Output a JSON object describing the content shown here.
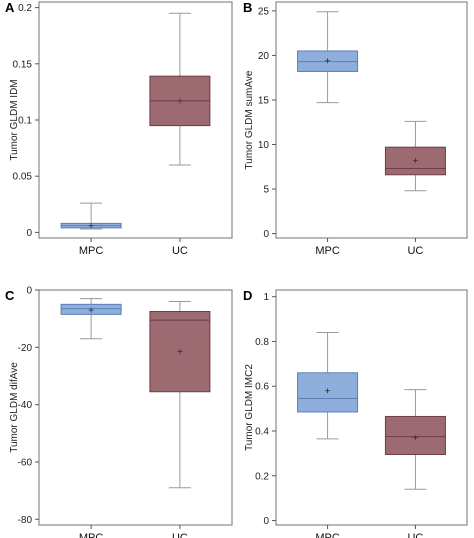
{
  "colors": {
    "mpc_fill": "#8eaedb",
    "mpc_stroke": "#5b7fb5",
    "uc_fill": "#9c6b72",
    "uc_stroke": "#6e3d45",
    "frame": "#8a8a8a",
    "whisker": "#9a9a9a"
  },
  "chart_data": [
    {
      "type": "boxplot",
      "panel_letter": "A",
      "ylabel": "Tumor GLDM IDM",
      "ylim": [
        -0.005,
        0.205
      ],
      "yticks": [
        0,
        0.05,
        0.1,
        0.15,
        0.2
      ],
      "ytick_labels": [
        "0",
        "0.05",
        "0.1",
        "0.15",
        "0.2"
      ],
      "categories": [
        "MPC",
        "UC"
      ],
      "boxes": [
        {
          "min": 0.003,
          "q1": 0.004,
          "median": 0.006,
          "q3": 0.008,
          "max": 0.026,
          "mean": 0.006
        },
        {
          "min": 0.06,
          "q1": 0.095,
          "median": 0.117,
          "q3": 0.139,
          "max": 0.195,
          "mean": 0.117
        }
      ]
    },
    {
      "type": "boxplot",
      "panel_letter": "B",
      "ylabel": "Tumor GLDM sumAve",
      "ylim": [
        -0.5,
        26
      ],
      "yticks": [
        0,
        5,
        10,
        15,
        20,
        25
      ],
      "ytick_labels": [
        "0",
        "5",
        "10",
        "15",
        "20",
        "25"
      ],
      "categories": [
        "MPC",
        "UC"
      ],
      "boxes": [
        {
          "min": 14.7,
          "q1": 18.2,
          "median": 19.3,
          "q3": 20.5,
          "max": 24.9,
          "mean": 19.4
        },
        {
          "min": 4.8,
          "q1": 6.6,
          "median": 7.3,
          "q3": 9.7,
          "max": 12.6,
          "mean": 8.2
        }
      ]
    },
    {
      "type": "boxplot",
      "panel_letter": "C",
      "ylabel": "Tumor GLDM difAve",
      "ylim": [
        -82,
        0
      ],
      "yticks": [
        0,
        -20,
        -40,
        -60,
        -80
      ],
      "ytick_labels": [
        "0",
        "-20",
        "-40",
        "-60",
        "-80"
      ],
      "categories": [
        "MPC",
        "UC"
      ],
      "boxes": [
        {
          "min": -17,
          "q1": -8.5,
          "median": -6.5,
          "q3": -5,
          "max": -3,
          "mean": -7
        },
        {
          "min": -69,
          "q1": -35.5,
          "median": -10.5,
          "q3": -7.5,
          "max": -4,
          "mean": -21.5
        }
      ]
    },
    {
      "type": "boxplot",
      "panel_letter": "D",
      "ylabel": "Tumor GLDM IMC2",
      "ylim": [
        -0.02,
        1.03
      ],
      "yticks": [
        0,
        0.2,
        0.4,
        0.6,
        0.8,
        1
      ],
      "ytick_labels": [
        "0",
        "0.2",
        "0.4",
        "0.6",
        "0.8",
        "1"
      ],
      "categories": [
        "MPC",
        "UC"
      ],
      "boxes": [
        {
          "min": 0.365,
          "q1": 0.485,
          "median": 0.545,
          "q3": 0.66,
          "max": 0.84,
          "mean": 0.58
        },
        {
          "min": 0.14,
          "q1": 0.295,
          "median": 0.375,
          "q3": 0.465,
          "max": 0.585,
          "mean": 0.37
        }
      ]
    }
  ]
}
